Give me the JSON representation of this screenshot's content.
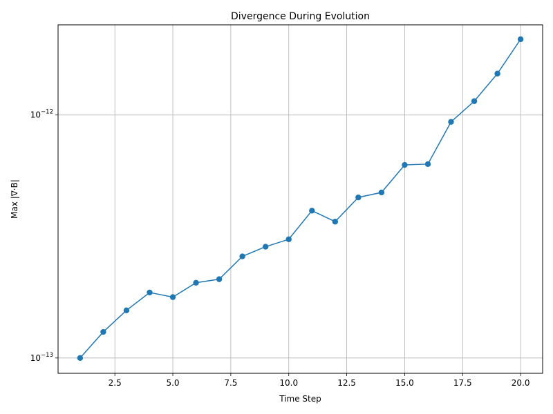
{
  "chart_data": {
    "type": "line",
    "title": "Divergence During Evolution",
    "xlabel": "Time Step",
    "ylabel": "Max |∇·B|",
    "yscale": "log",
    "grid": true,
    "xlim": [
      0.05,
      20.95
    ],
    "ylim": [
      8.65e-14,
      2.35e-12
    ],
    "xticks": [
      {
        "value": 2.5,
        "label": "2.5"
      },
      {
        "value": 5.0,
        "label": "5.0"
      },
      {
        "value": 7.5,
        "label": "7.5"
      },
      {
        "value": 10.0,
        "label": "10.0"
      },
      {
        "value": 12.5,
        "label": "12.5"
      },
      {
        "value": 15.0,
        "label": "15.0"
      },
      {
        "value": 17.5,
        "label": "17.5"
      },
      {
        "value": 20.0,
        "label": "20.0"
      }
    ],
    "yticks": [
      {
        "value": 1e-13,
        "base": "10",
        "exp": "−13"
      },
      {
        "value": 1e-12,
        "base": "10",
        "exp": "−12"
      }
    ],
    "series": [
      {
        "color": "#1f77b4",
        "marker": "circle",
        "x": [
          1,
          2,
          3,
          4,
          5,
          6,
          7,
          8,
          9,
          10,
          11,
          12,
          13,
          14,
          15,
          16,
          17,
          18,
          19,
          20
        ],
        "y": [
          1e-13,
          1.28e-13,
          1.57e-13,
          1.86e-13,
          1.78e-13,
          2.04e-13,
          2.11e-13,
          2.62e-13,
          2.87e-13,
          3.08e-13,
          4.04e-13,
          3.64e-13,
          4.58e-13,
          4.8e-13,
          6.23e-13,
          6.28e-13,
          9.37e-13,
          1.14e-12,
          1.48e-12,
          2.05e-12
        ]
      }
    ]
  }
}
